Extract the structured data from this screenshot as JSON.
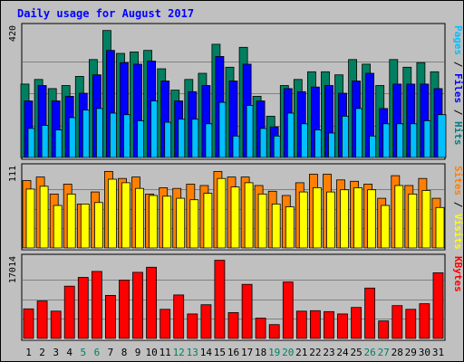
{
  "chart_data": [
    {
      "type": "bar",
      "title": "Daily usage for August 2017",
      "panel": "top",
      "ylabel_parts": [
        {
          "text": "Pages",
          "color": "#00c0ff"
        },
        {
          "text": " / ",
          "color": "#000000"
        },
        {
          "text": "Files",
          "color": "#0000ff"
        },
        {
          "text": " / ",
          "color": "#000000"
        },
        {
          "text": "Hits",
          "color": "#008080"
        }
      ],
      "ymax_label": "420",
      "ylim": [
        0,
        420
      ],
      "grid": true,
      "categories": [
        "1",
        "2",
        "3",
        "4",
        "5",
        "6",
        "7",
        "8",
        "9",
        "10",
        "11",
        "12",
        "13",
        "14",
        "15",
        "16",
        "17",
        "18",
        "19",
        "20",
        "21",
        "22",
        "23",
        "24",
        "25",
        "26",
        "27",
        "28",
        "29",
        "30",
        "31"
      ],
      "series": [
        {
          "name": "Hits",
          "color": "#008060",
          "values": [
            240,
            255,
            225,
            235,
            265,
            320,
            415,
            340,
            345,
            350,
            290,
            220,
            255,
            275,
            370,
            295,
            360,
            200,
            135,
            235,
            255,
            280,
            280,
            270,
            320,
            305,
            235,
            320,
            295,
            310,
            280
          ]
        },
        {
          "name": "Files",
          "color": "#0000ff",
          "values": [
            185,
            235,
            185,
            200,
            210,
            270,
            350,
            310,
            305,
            315,
            250,
            185,
            215,
            235,
            330,
            250,
            305,
            185,
            100,
            225,
            215,
            230,
            235,
            210,
            250,
            275,
            160,
            240,
            240,
            240,
            225
          ]
        },
        {
          "name": "Pages",
          "color": "#00c0ff",
          "values": [
            95,
            105,
            90,
            130,
            155,
            160,
            145,
            140,
            120,
            185,
            115,
            125,
            125,
            110,
            180,
            70,
            170,
            95,
            70,
            145,
            110,
            90,
            80,
            135,
            160,
            70,
            110,
            110,
            110,
            120,
            140
          ]
        }
      ]
    },
    {
      "type": "bar",
      "panel": "middle",
      "ylabel_parts": [
        {
          "text": "Sites",
          "color": "#ff8000"
        },
        {
          "text": " / ",
          "color": "#000000"
        },
        {
          "text": "Visits",
          "color": "#ffff00"
        }
      ],
      "ymax_label": "111",
      "ylim": [
        0,
        111
      ],
      "grid": true,
      "categories": [
        "1",
        "2",
        "3",
        "4",
        "5",
        "6",
        "7",
        "8",
        "9",
        "10",
        "11",
        "12",
        "13",
        "14",
        "15",
        "16",
        "17",
        "18",
        "19",
        "20",
        "21",
        "22",
        "23",
        "24",
        "25",
        "26",
        "27",
        "28",
        "29",
        "30",
        "31"
      ],
      "series": [
        {
          "name": "Sites",
          "color": "#ff8000",
          "values": [
            95,
            100,
            76,
            90,
            62,
            79,
            108,
            98,
            100,
            76,
            85,
            84,
            90,
            88,
            108,
            100,
            100,
            88,
            80,
            74,
            92,
            104,
            104,
            96,
            94,
            90,
            70,
            102,
            88,
            98,
            70
          ]
        },
        {
          "name": "Visits",
          "color": "#ffff00",
          "values": [
            83,
            87,
            60,
            76,
            62,
            64,
            97,
            92,
            84,
            74,
            73,
            70,
            68,
            77,
            98,
            86,
            92,
            76,
            62,
            58,
            79,
            85,
            79,
            82,
            85,
            82,
            60,
            88,
            76,
            81,
            57
          ]
        }
      ]
    },
    {
      "type": "bar",
      "panel": "bottom",
      "ylabel_parts": [
        {
          "text": "KBytes",
          "color": "#ff0000"
        }
      ],
      "ymax_label": "17014",
      "ylim": [
        0,
        17014
      ],
      "grid": true,
      "categories": [
        "1",
        "2",
        "3",
        "4",
        "5",
        "6",
        "7",
        "8",
        "9",
        "10",
        "11",
        "12",
        "13",
        "14",
        "15",
        "16",
        "17",
        "18",
        "19",
        "20",
        "21",
        "22",
        "23",
        "24",
        "25",
        "26",
        "27",
        "28",
        "29",
        "30",
        "31"
      ],
      "series": [
        {
          "name": "KBytes",
          "color": "#ff0000",
          "values": [
            6400,
            8100,
            5900,
            11300,
            13200,
            14500,
            9300,
            12600,
            14300,
            15400,
            6300,
            9400,
            5300,
            7300,
            16900,
            5600,
            11700,
            4400,
            3000,
            12200,
            5900,
            6000,
            5800,
            5300,
            6700,
            10900,
            3800,
            7100,
            6300,
            7500,
            14200
          ]
        }
      ]
    }
  ],
  "x_labels": [
    {
      "text": "1",
      "color": "#000000"
    },
    {
      "text": "2",
      "color": "#000000"
    },
    {
      "text": "3",
      "color": "#000000"
    },
    {
      "text": "4",
      "color": "#000000"
    },
    {
      "text": "5",
      "color": "#008060"
    },
    {
      "text": "6",
      "color": "#008060"
    },
    {
      "text": "7",
      "color": "#000000"
    },
    {
      "text": "8",
      "color": "#000000"
    },
    {
      "text": "9",
      "color": "#000000"
    },
    {
      "text": "10",
      "color": "#000000"
    },
    {
      "text": "11",
      "color": "#000000"
    },
    {
      "text": "12",
      "color": "#008060"
    },
    {
      "text": "13",
      "color": "#008060"
    },
    {
      "text": "14",
      "color": "#000000"
    },
    {
      "text": "15",
      "color": "#000000"
    },
    {
      "text": "16",
      "color": "#000000"
    },
    {
      "text": "17",
      "color": "#000000"
    },
    {
      "text": "18",
      "color": "#000000"
    },
    {
      "text": "19",
      "color": "#008060"
    },
    {
      "text": "20",
      "color": "#008060"
    },
    {
      "text": "21",
      "color": "#000000"
    },
    {
      "text": "22",
      "color": "#000000"
    },
    {
      "text": "23",
      "color": "#000000"
    },
    {
      "text": "24",
      "color": "#000000"
    },
    {
      "text": "25",
      "color": "#000000"
    },
    {
      "text": "26",
      "color": "#008060"
    },
    {
      "text": "27",
      "color": "#008060"
    },
    {
      "text": "28",
      "color": "#000000"
    },
    {
      "text": "29",
      "color": "#000000"
    },
    {
      "text": "30",
      "color": "#000000"
    },
    {
      "text": "31",
      "color": "#000000"
    }
  ]
}
